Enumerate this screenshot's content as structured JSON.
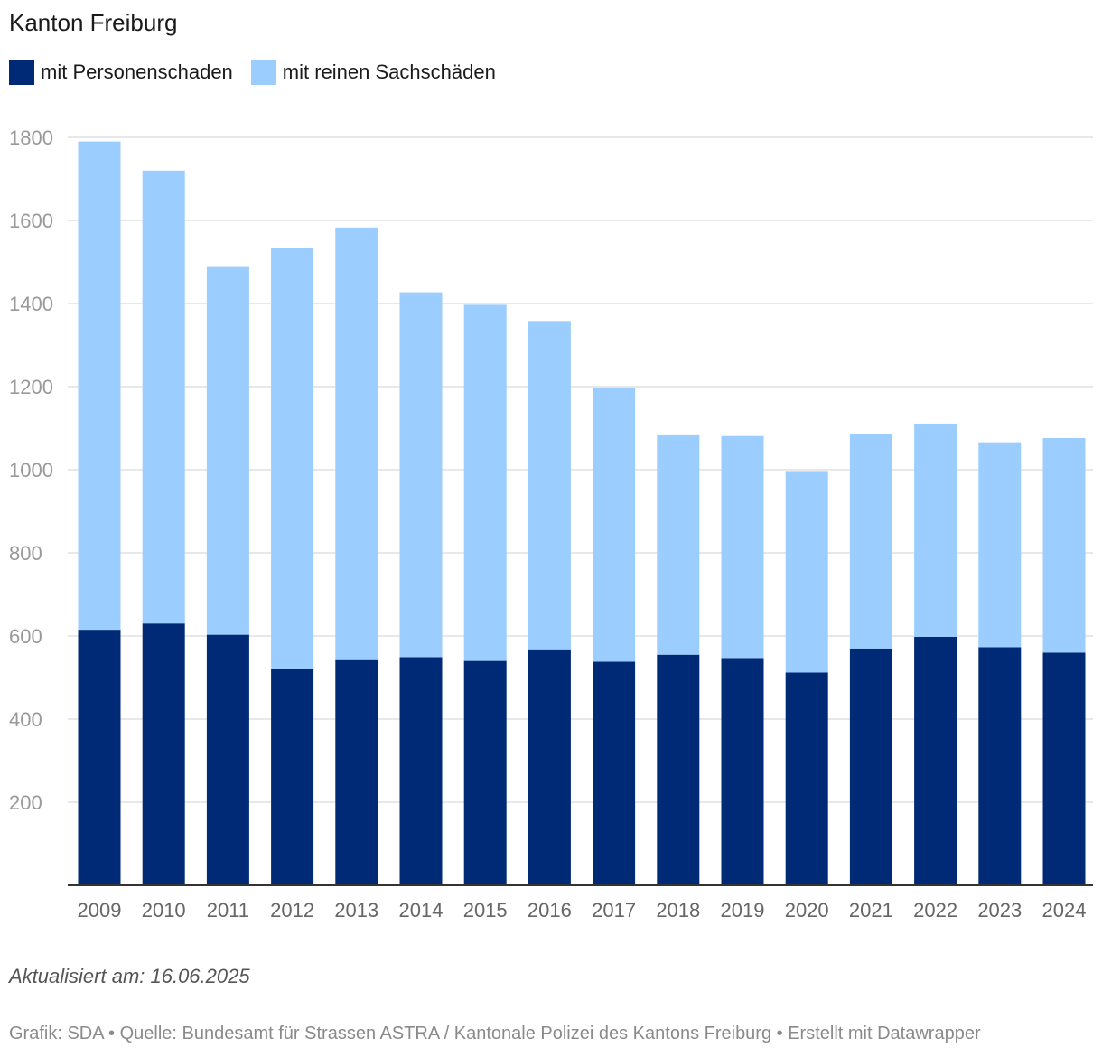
{
  "title": "Kanton Freiburg",
  "note": "Aktualisiert am: 16.06.2025",
  "footer": "Grafik: SDA • Quelle: Bundesamt für Strassen ASTRA / Kantonale Polizei des Kantons Freiburg • Erstellt mit Datawrapper",
  "colors": {
    "personen": "#002a75",
    "sach": "#9bcdfe",
    "grid": "#e1e1e1",
    "axis": "#333333",
    "tick": "#999999",
    "xtick": "#666666"
  },
  "chart_data": {
    "type": "bar",
    "stacked": true,
    "categories": [
      "2009",
      "2010",
      "2011",
      "2012",
      "2013",
      "2014",
      "2015",
      "2016",
      "2017",
      "2018",
      "2019",
      "2020",
      "2021",
      "2022",
      "2023",
      "2024"
    ],
    "series": [
      {
        "name": "mit Personenschaden",
        "color": "#002a75",
        "values": [
          615,
          630,
          603,
          522,
          542,
          549,
          540,
          568,
          538,
          555,
          547,
          512,
          570,
          598,
          573,
          560
        ]
      },
      {
        "name": "mit reinen Sachschäden",
        "color": "#9bcdfe",
        "values": [
          1175,
          1090,
          887,
          1011,
          1041,
          878,
          857,
          790,
          660,
          530,
          534,
          485,
          517,
          513,
          493,
          516
        ]
      }
    ],
    "yticks": [
      200,
      400,
      600,
      800,
      1000,
      1200,
      1400,
      1600,
      1800
    ],
    "ylim": [
      0,
      1850
    ],
    "grid": true,
    "legend": "top-left"
  }
}
